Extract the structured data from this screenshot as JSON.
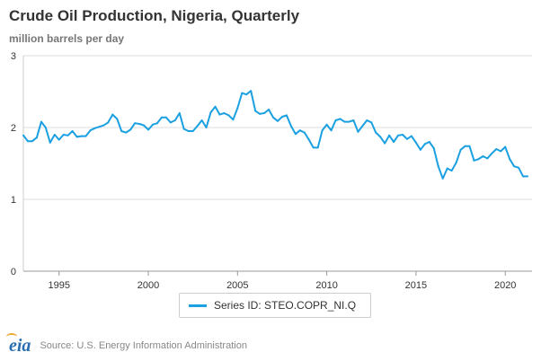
{
  "header": {
    "title": "Crude Oil Production, Nigeria, Quarterly",
    "subtitle": "million barrels per day"
  },
  "legend": {
    "label": "Series ID: STEO.COPR_NI.Q",
    "color": "#1ba0e1"
  },
  "footer": {
    "logo_text": "eia",
    "source": "Source: U.S. Energy Information Administration"
  },
  "chart_data": {
    "type": "line",
    "title": "Crude Oil Production, Nigeria, Quarterly",
    "ylabel": "million barrels per day",
    "xlabel": "",
    "xlim": [
      1993,
      2021.5
    ],
    "ylim": [
      0,
      3
    ],
    "x_ticks": [
      1995,
      2000,
      2005,
      2010,
      2015,
      2020
    ],
    "y_ticks": [
      0,
      1,
      2,
      3
    ],
    "grid": "horizontal",
    "legend_position": "bottom-center",
    "series": [
      {
        "name": "Series ID: STEO.COPR_NI.Q",
        "color": "#1ba0e1",
        "x": [
          1993.0,
          1993.25,
          1993.5,
          1993.75,
          1994.0,
          1994.25,
          1994.5,
          1994.75,
          1995.0,
          1995.25,
          1995.5,
          1995.75,
          1996.0,
          1996.25,
          1996.5,
          1996.75,
          1997.0,
          1997.25,
          1997.5,
          1997.75,
          1998.0,
          1998.25,
          1998.5,
          1998.75,
          1999.0,
          1999.25,
          1999.5,
          1999.75,
          2000.0,
          2000.25,
          2000.5,
          2000.75,
          2001.0,
          2001.25,
          2001.5,
          2001.75,
          2002.0,
          2002.25,
          2002.5,
          2002.75,
          2003.0,
          2003.25,
          2003.5,
          2003.75,
          2004.0,
          2004.25,
          2004.5,
          2004.75,
          2005.0,
          2005.25,
          2005.5,
          2005.75,
          2006.0,
          2006.25,
          2006.5,
          2006.75,
          2007.0,
          2007.25,
          2007.5,
          2007.75,
          2008.0,
          2008.25,
          2008.5,
          2008.75,
          2009.0,
          2009.25,
          2009.5,
          2009.75,
          2010.0,
          2010.25,
          2010.5,
          2010.75,
          2011.0,
          2011.25,
          2011.5,
          2011.75,
          2012.0,
          2012.25,
          2012.5,
          2012.75,
          2013.0,
          2013.25,
          2013.5,
          2013.75,
          2014.0,
          2014.25,
          2014.5,
          2014.75,
          2015.0,
          2015.25,
          2015.5,
          2015.75,
          2016.0,
          2016.25,
          2016.5,
          2016.75,
          2017.0,
          2017.25,
          2017.5,
          2017.75,
          2018.0,
          2018.25,
          2018.5,
          2018.75,
          2019.0,
          2019.25,
          2019.5,
          2019.75,
          2020.0,
          2020.25,
          2020.5,
          2020.75,
          2021.0,
          2021.25
        ],
        "values": [
          1.89,
          1.81,
          1.81,
          1.86,
          2.08,
          2.0,
          1.79,
          1.9,
          1.83,
          1.9,
          1.89,
          1.95,
          1.87,
          1.88,
          1.88,
          1.96,
          1.99,
          2.01,
          2.03,
          2.07,
          2.18,
          2.12,
          1.95,
          1.93,
          1.97,
          2.06,
          2.05,
          2.03,
          1.97,
          2.04,
          2.06,
          2.14,
          2.14,
          2.07,
          2.1,
          2.2,
          1.98,
          1.95,
          1.95,
          2.02,
          2.1,
          2.0,
          2.21,
          2.29,
          2.18,
          2.2,
          2.17,
          2.11,
          2.27,
          2.48,
          2.46,
          2.51,
          2.23,
          2.19,
          2.2,
          2.25,
          2.14,
          2.09,
          2.15,
          2.17,
          2.02,
          1.91,
          1.96,
          1.93,
          1.83,
          1.72,
          1.72,
          1.96,
          2.04,
          1.96,
          2.1,
          2.12,
          2.08,
          2.08,
          2.1,
          1.94,
          2.02,
          2.1,
          2.07,
          1.93,
          1.87,
          1.78,
          1.89,
          1.8,
          1.89,
          1.9,
          1.84,
          1.88,
          1.79,
          1.69,
          1.77,
          1.8,
          1.71,
          1.46,
          1.29,
          1.43,
          1.4,
          1.51,
          1.69,
          1.74,
          1.74,
          1.54,
          1.56,
          1.6,
          1.57,
          1.64,
          1.7,
          1.67,
          1.73,
          1.56,
          1.46,
          1.44,
          1.32,
          1.32
        ]
      }
    ]
  }
}
